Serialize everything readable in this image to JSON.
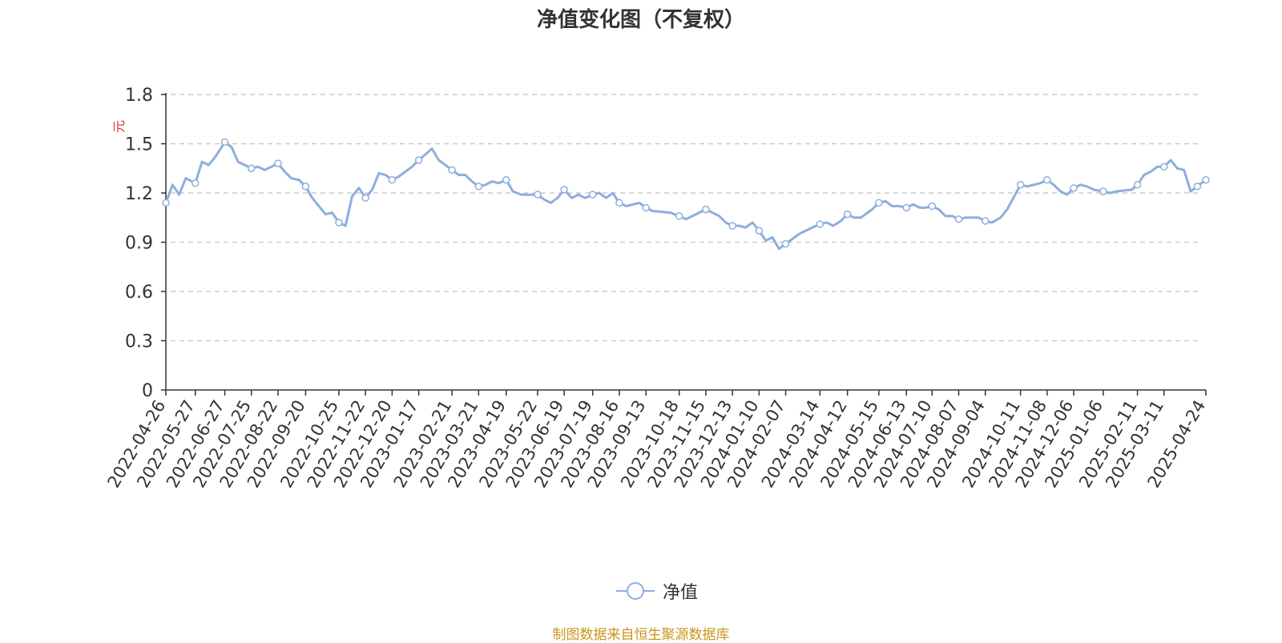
{
  "chart_data": {
    "type": "line",
    "title": "净值变化图（不复权）",
    "ylabel": "元",
    "xlabel": "",
    "ylim": [
      0,
      1.8
    ],
    "yticks": [
      "0",
      "0.3",
      "0.6",
      "0.9",
      "1.2",
      "1.5",
      "1.8"
    ],
    "grid": true,
    "legend_position": "bottom-center",
    "colors": {
      "line": "#8eaedd",
      "axis": "#333333",
      "grid": "#cccccc",
      "ylabel": "#e03030"
    },
    "x_tick_labels": [
      "2022-04-26",
      "2022-05-27",
      "2022-06-27",
      "2022-07-25",
      "2022-08-22",
      "2022-09-20",
      "2022-10-25",
      "2022-11-22",
      "2022-12-20",
      "2023-01-17",
      "2023-02-21",
      "2023-03-21",
      "2023-04-19",
      "2023-05-22",
      "2023-06-19",
      "2023-07-19",
      "2023-08-16",
      "2023-09-13",
      "2023-10-18",
      "2023-11-15",
      "2023-12-13",
      "2024-01-10",
      "2024-02-07",
      "2024-03-14",
      "2024-04-12",
      "2024-05-15",
      "2024-06-13",
      "2024-07-10",
      "2024-08-07",
      "2024-09-04",
      "2024-10-11",
      "2024-11-08",
      "2024-12-06",
      "2025-01-06",
      "2025-02-11",
      "2025-03-11",
      "2025-04-24"
    ],
    "series": [
      {
        "name": "净值",
        "x": [
          "2022-04-26",
          "2022-05-03",
          "2022-05-10",
          "2022-05-17",
          "2022-05-27",
          "2022-06-03",
          "2022-06-10",
          "2022-06-17",
          "2022-06-27",
          "2022-07-04",
          "2022-07-11",
          "2022-07-18",
          "2022-07-25",
          "2022-08-01",
          "2022-08-08",
          "2022-08-15",
          "2022-08-22",
          "2022-08-29",
          "2022-09-05",
          "2022-09-13",
          "2022-09-20",
          "2022-09-27",
          "2022-10-11",
          "2022-10-18",
          "2022-10-25",
          "2022-11-01",
          "2022-11-08",
          "2022-11-15",
          "2022-11-22",
          "2022-11-29",
          "2022-12-06",
          "2022-12-13",
          "2022-12-20",
          "2022-12-27",
          "2023-01-03",
          "2023-01-10",
          "2023-01-17",
          "2023-01-31",
          "2023-02-07",
          "2023-02-14",
          "2023-02-21",
          "2023-02-28",
          "2023-03-07",
          "2023-03-14",
          "2023-03-21",
          "2023-03-28",
          "2023-04-04",
          "2023-04-11",
          "2023-04-19",
          "2023-04-26",
          "2023-05-05",
          "2023-05-12",
          "2023-05-22",
          "2023-05-29",
          "2023-06-05",
          "2023-06-12",
          "2023-06-19",
          "2023-06-27",
          "2023-07-04",
          "2023-07-11",
          "2023-07-19",
          "2023-07-26",
          "2023-08-02",
          "2023-08-09",
          "2023-08-16",
          "2023-08-23",
          "2023-08-30",
          "2023-09-06",
          "2023-09-13",
          "2023-09-20",
          "2023-10-09",
          "2023-10-13",
          "2023-10-18",
          "2023-10-25",
          "2023-11-01",
          "2023-11-08",
          "2023-11-15",
          "2023-11-22",
          "2023-11-29",
          "2023-12-06",
          "2023-12-13",
          "2023-12-20",
          "2023-12-27",
          "2024-01-03",
          "2024-01-10",
          "2024-01-17",
          "2024-01-24",
          "2024-01-31",
          "2024-02-07",
          "2024-02-21",
          "2024-02-28",
          "2024-03-06",
          "2024-03-14",
          "2024-03-21",
          "2024-03-28",
          "2024-04-05",
          "2024-04-12",
          "2024-04-19",
          "2024-04-26",
          "2024-05-08",
          "2024-05-15",
          "2024-05-22",
          "2024-05-29",
          "2024-06-05",
          "2024-06-13",
          "2024-06-20",
          "2024-06-27",
          "2024-07-03",
          "2024-07-10",
          "2024-07-17",
          "2024-07-24",
          "2024-07-31",
          "2024-08-07",
          "2024-08-14",
          "2024-08-21",
          "2024-08-28",
          "2024-09-04",
          "2024-09-11",
          "2024-09-20",
          "2024-09-27",
          "2024-10-11",
          "2024-10-18",
          "2024-10-25",
          "2024-11-01",
          "2024-11-08",
          "2024-11-15",
          "2024-11-22",
          "2024-11-29",
          "2024-12-06",
          "2024-12-13",
          "2024-12-20",
          "2024-12-27",
          "2025-01-06",
          "2025-01-13",
          "2025-01-20",
          "2025-02-05",
          "2025-02-11",
          "2025-02-18",
          "2025-02-25",
          "2025-03-04",
          "2025-03-11",
          "2025-03-18",
          "2025-03-25",
          "2025-04-01",
          "2025-04-08",
          "2025-04-15",
          "2025-04-24"
        ],
        "values": [
          1.14,
          1.25,
          1.19,
          1.29,
          1.26,
          1.39,
          1.37,
          1.42,
          1.51,
          1.48,
          1.39,
          1.37,
          1.35,
          1.36,
          1.34,
          1.36,
          1.38,
          1.33,
          1.29,
          1.28,
          1.24,
          1.17,
          1.07,
          1.08,
          1.02,
          1.0,
          1.18,
          1.23,
          1.17,
          1.22,
          1.32,
          1.31,
          1.28,
          1.3,
          1.33,
          1.36,
          1.4,
          1.47,
          1.4,
          1.37,
          1.34,
          1.31,
          1.31,
          1.27,
          1.24,
          1.25,
          1.27,
          1.26,
          1.28,
          1.21,
          1.19,
          1.19,
          1.19,
          1.16,
          1.14,
          1.17,
          1.22,
          1.17,
          1.19,
          1.17,
          1.19,
          1.2,
          1.17,
          1.2,
          1.14,
          1.12,
          1.13,
          1.14,
          1.11,
          1.09,
          1.08,
          1.07,
          1.06,
          1.04,
          1.06,
          1.08,
          1.1,
          1.08,
          1.06,
          1.02,
          1.0,
          1.0,
          0.99,
          1.02,
          0.97,
          0.91,
          0.93,
          0.86,
          0.89,
          0.95,
          0.97,
          0.99,
          1.01,
          1.02,
          1.0,
          1.03,
          1.07,
          1.05,
          1.05,
          1.1,
          1.14,
          1.15,
          1.12,
          1.12,
          1.11,
          1.13,
          1.11,
          1.11,
          1.12,
          1.1,
          1.06,
          1.06,
          1.04,
          1.05,
          1.05,
          1.05,
          1.03,
          1.02,
          1.05,
          1.1,
          1.25,
          1.24,
          1.25,
          1.26,
          1.28,
          1.25,
          1.21,
          1.19,
          1.23,
          1.25,
          1.24,
          1.22,
          1.21,
          1.2,
          1.21,
          1.22,
          1.25,
          1.31,
          1.33,
          1.36,
          1.36,
          1.4,
          1.35,
          1.34,
          1.21,
          1.24,
          1.28
        ],
        "marker_x": [
          "2022-04-26",
          "2022-05-27",
          "2022-06-27",
          "2022-07-25",
          "2022-08-22",
          "2022-09-20",
          "2022-10-25",
          "2022-11-22",
          "2022-12-20",
          "2023-01-17",
          "2023-02-21",
          "2023-03-21",
          "2023-04-19",
          "2023-05-22",
          "2023-06-19",
          "2023-07-19",
          "2023-08-16",
          "2023-09-13",
          "2023-10-18",
          "2023-11-15",
          "2023-12-13",
          "2024-01-10",
          "2024-02-07",
          "2024-03-14",
          "2024-04-12",
          "2024-05-15",
          "2024-06-13",
          "2024-07-10",
          "2024-08-07",
          "2024-09-04",
          "2024-10-11",
          "2024-11-08",
          "2024-12-06",
          "2025-01-06",
          "2025-02-11",
          "2025-03-11",
          "2025-04-15",
          "2025-04-24"
        ]
      }
    ]
  },
  "legend": {
    "label": "净值"
  },
  "footer": {
    "source": "制图数据来自恒生聚源数据库"
  }
}
